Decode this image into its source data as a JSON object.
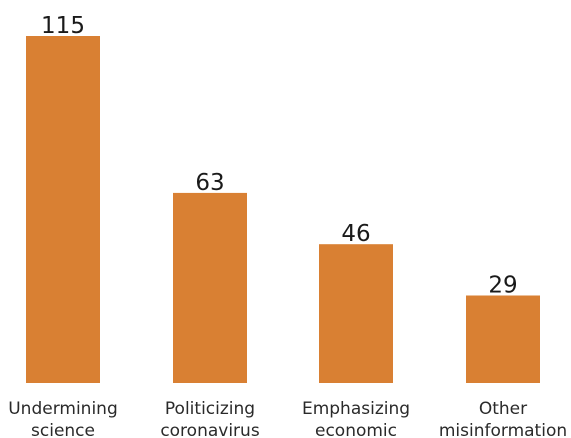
{
  "chart_data": {
    "type": "bar",
    "categories": [
      [
        "Undermining",
        "science"
      ],
      [
        "Politicizing",
        "coronavirus"
      ],
      [
        "Emphasizing",
        "economic"
      ],
      [
        "Other",
        "misinformation"
      ]
    ],
    "values": [
      115,
      63,
      46,
      29
    ],
    "bar_color": "#D98033",
    "ylim": [
      0,
      115
    ],
    "grid": false,
    "legend": "none"
  }
}
